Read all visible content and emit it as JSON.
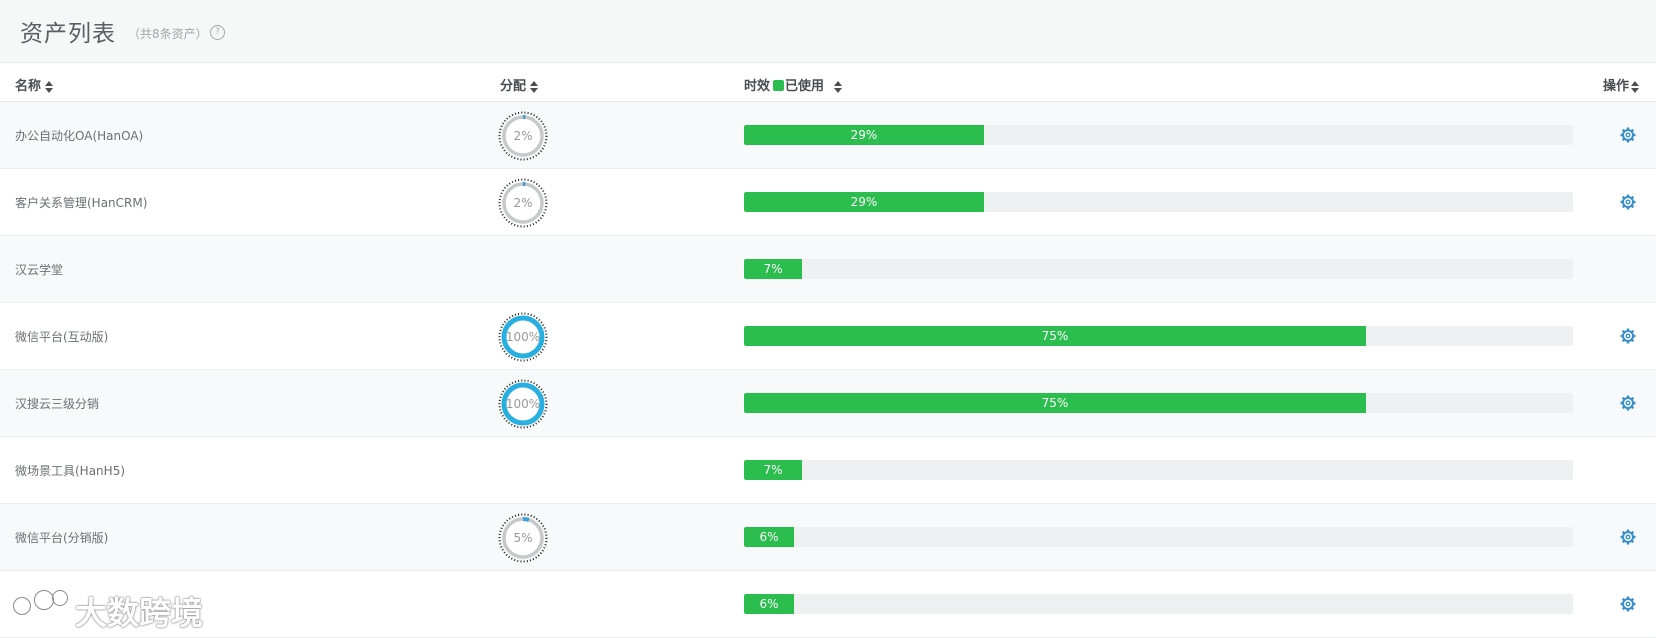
{
  "header": {
    "title": "资产列表",
    "subtitle": "（共8条资产）",
    "help_glyph": "?"
  },
  "table": {
    "columns": {
      "name": "名称",
      "allocation": "分配",
      "validity": "时效",
      "legend_used": "已使用",
      "actions": "操作"
    },
    "rows": [
      {
        "name": "办公自动化OA(HanOA)",
        "allocation": 2,
        "allocation_label": "2%",
        "used": 29,
        "used_label": "29%",
        "has_action": true
      },
      {
        "name": "客户关系管理(HanCRM)",
        "allocation": 2,
        "allocation_label": "2%",
        "used": 29,
        "used_label": "29%",
        "has_action": true
      },
      {
        "name": "汉云学堂",
        "allocation": null,
        "allocation_label": "",
        "used": 7,
        "used_label": "7%",
        "has_action": false
      },
      {
        "name": "微信平台(互动版)",
        "allocation": 100,
        "allocation_label": "100%",
        "used": 75,
        "used_label": "75%",
        "has_action": true
      },
      {
        "name": "汉搜云三级分销",
        "allocation": 100,
        "allocation_label": "100%",
        "used": 75,
        "used_label": "75%",
        "has_action": true
      },
      {
        "name": "微场景工具(HanH5)",
        "allocation": null,
        "allocation_label": "",
        "used": 7,
        "used_label": "7%",
        "has_action": false
      },
      {
        "name": "微信平台(分销版)",
        "allocation": 5,
        "allocation_label": "5%",
        "used": 6,
        "used_label": "6%",
        "has_action": true
      },
      {
        "name": "",
        "allocation": null,
        "allocation_label": "",
        "used": 6,
        "used_label": "6%",
        "has_action": true
      }
    ]
  },
  "watermark": {
    "text": "大数跨境"
  },
  "colors": {
    "used_bar": "#2bbd4d",
    "track": "#eef0f1",
    "donut_ring": "#c6c8ca",
    "donut_full": "#29aee0",
    "donut_progress": "#3c9fd8",
    "gear": "#3a8fc9"
  }
}
